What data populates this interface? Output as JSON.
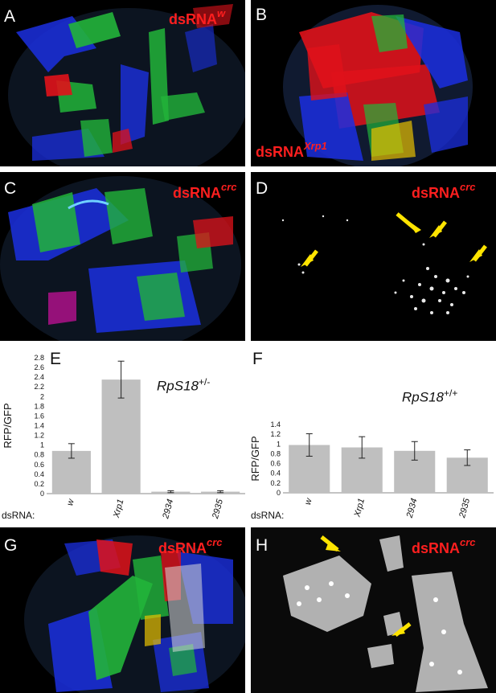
{
  "panels": {
    "A": {
      "letter": "A",
      "label_prefix": "dsRNA",
      "label_sup": "w"
    },
    "B": {
      "letter": "B",
      "label_prefix": "dsRNA",
      "label_sup": "Xrp1"
    },
    "C": {
      "letter": "C",
      "label_prefix": "dsRNA",
      "label_sup": "crc"
    },
    "D": {
      "letter": "D",
      "label_prefix": "dsRNA",
      "label_sup": "crc"
    },
    "G": {
      "letter": "G",
      "label_prefix": "dsRNA",
      "label_sup": "crc"
    },
    "H": {
      "letter": "H",
      "label_prefix": "dsRNA",
      "label_sup": "crc"
    }
  },
  "colors": {
    "red": "#e0121a",
    "green": "#22b43a",
    "blue": "#1b2fe0",
    "yellow_arrow": "#ffe400",
    "bar": "#bfbfbf",
    "label_red": "#ff1f1f"
  },
  "chart_data": [
    {
      "type": "bar",
      "panel_letter": "E",
      "genotype": "RpS18",
      "genotype_sup": "+/-",
      "ylabel": "RFP/GFP",
      "xlabel_prefix": "dsRNA:",
      "categories": [
        "w",
        "Xrp1",
        "2934",
        "2935"
      ],
      "values": [
        0.88,
        2.35,
        0.04,
        0.04
      ],
      "errors": [
        0.15,
        0.38,
        0.02,
        0.02
      ],
      "ylim": [
        0,
        2.8
      ],
      "yticks": [
        "0",
        "0.2",
        "0.4",
        "0.6",
        "0.8",
        "1",
        "1.2",
        "1.4",
        "1.6",
        "1.8",
        "2",
        "2.2",
        "2.4",
        "2.6",
        "2.8"
      ]
    },
    {
      "type": "bar",
      "panel_letter": "F",
      "genotype": "RpS18",
      "genotype_sup": "+/+",
      "ylabel": "RFP/GFP",
      "xlabel_prefix": "dsRNA:",
      "categories": [
        "w",
        "Xrp1",
        "2934",
        "2935"
      ],
      "values": [
        0.98,
        0.93,
        0.86,
        0.72
      ],
      "errors": [
        0.23,
        0.22,
        0.19,
        0.16
      ],
      "ylim": [
        0,
        1.4
      ],
      "yticks": [
        "0",
        "0.2",
        "0.4",
        "0.6",
        "0.8",
        "1",
        "1.2",
        "1.4"
      ]
    }
  ]
}
